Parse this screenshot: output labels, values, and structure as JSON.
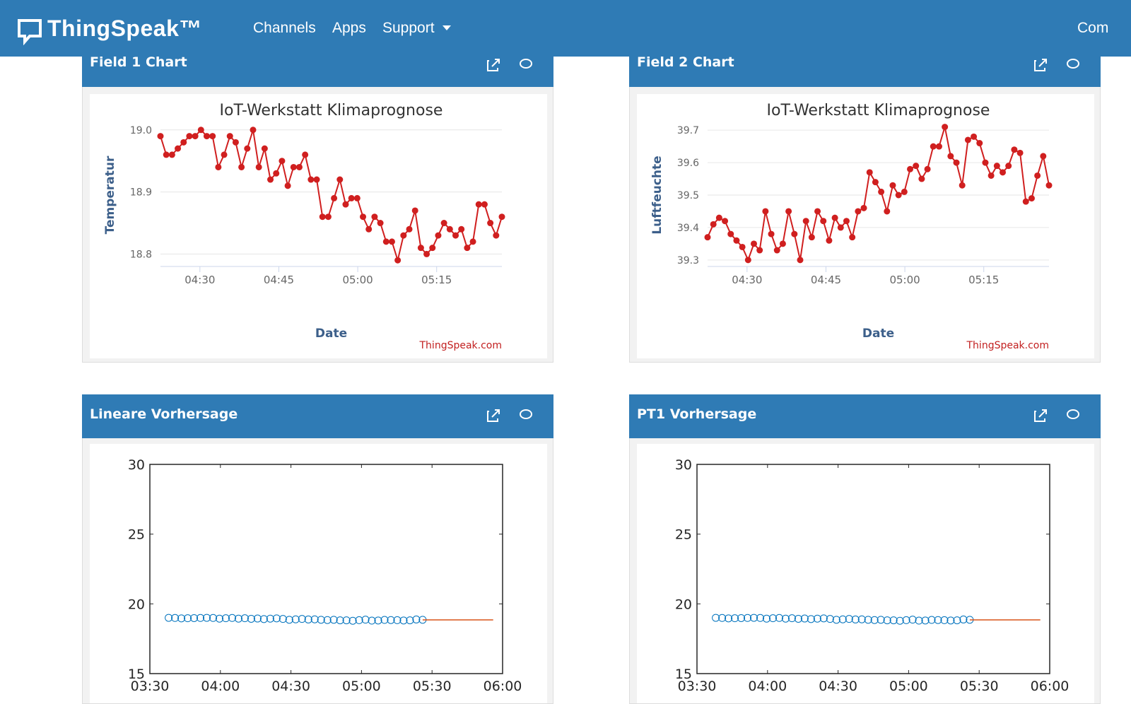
{
  "nav": {
    "brand": "ThingSpeak™",
    "links": [
      "Channels",
      "Apps",
      "Support",
      "Com"
    ]
  },
  "panels": [
    {
      "title": "Field 1 Chart"
    },
    {
      "title": "Field 2 Chart"
    },
    {
      "title": "Lineare Vorhersage"
    },
    {
      "title": "PT1 Vorhersage"
    }
  ],
  "chart_data": [
    {
      "type": "line",
      "title": "IoT-Werkstatt Klimaprognose",
      "x_label": "Date",
      "y_label": "Temperatur",
      "credit": "ThingSpeak.com",
      "color": "#d01f1f",
      "grid": true,
      "x": [
        262.5,
        263.6,
        264.7,
        265.8,
        266.9,
        268.0,
        269.1,
        270.2,
        271.3,
        272.4,
        273.5,
        274.6,
        275.7,
        276.8,
        277.9,
        279.0,
        280.1,
        281.2,
        282.3,
        283.4,
        284.5,
        285.6,
        286.7,
        287.8,
        288.9,
        290.0,
        291.1,
        292.2,
        293.3,
        294.4,
        295.5,
        296.6,
        297.7,
        298.8,
        299.9,
        301.0,
        302.1,
        303.2,
        304.3,
        305.4,
        306.5,
        307.6,
        308.7,
        309.8,
        310.9,
        312.0,
        313.1,
        314.2,
        315.3,
        316.4,
        317.5,
        318.6,
        319.7,
        320.8,
        321.9,
        323.0,
        324.1,
        325.2,
        326.3,
        327.4
      ],
      "values": [
        18.99,
        18.96,
        18.96,
        18.97,
        18.98,
        18.99,
        18.99,
        19.0,
        18.99,
        18.99,
        18.94,
        18.96,
        18.99,
        18.98,
        18.94,
        18.97,
        19.0,
        18.94,
        18.97,
        18.92,
        18.93,
        18.95,
        18.91,
        18.94,
        18.94,
        18.96,
        18.92,
        18.92,
        18.86,
        18.86,
        18.89,
        18.92,
        18.88,
        18.89,
        18.89,
        18.86,
        18.84,
        18.86,
        18.85,
        18.82,
        18.82,
        18.79,
        18.83,
        18.84,
        18.87,
        18.81,
        18.8,
        18.81,
        18.83,
        18.85,
        18.84,
        18.83,
        18.84,
        18.81,
        18.82,
        18.88,
        18.88,
        18.85,
        18.83,
        18.86
      ],
      "xlim": [
        262.5,
        327.4
      ],
      "xticks": [
        {
          "value": 270,
          "label": "04:30"
        },
        {
          "value": 285,
          "label": "04:45"
        },
        {
          "value": 300,
          "label": "05:00"
        },
        {
          "value": 315,
          "label": "05:15"
        }
      ],
      "ylim": [
        18.78,
        19.01
      ],
      "yticks": [
        18.8,
        18.9,
        {
          "value": 19,
          "label": "19.0"
        }
      ]
    },
    {
      "type": "line",
      "title": "IoT-Werkstatt Klimaprognose",
      "x_label": "Date",
      "y_label": "Luftfeuchte",
      "credit": "ThingSpeak.com",
      "color": "#d01f1f",
      "grid": true,
      "x": [
        262.5,
        263.6,
        264.7,
        265.8,
        266.9,
        268.0,
        269.1,
        270.2,
        271.3,
        272.4,
        273.5,
        274.6,
        275.7,
        276.8,
        277.9,
        279.0,
        280.1,
        281.2,
        282.3,
        283.4,
        284.5,
        285.6,
        286.7,
        287.8,
        288.9,
        290.0,
        291.1,
        292.2,
        293.3,
        294.4,
        295.5,
        296.6,
        297.7,
        298.8,
        299.9,
        301.0,
        302.1,
        303.2,
        304.3,
        305.4,
        306.5,
        307.6,
        308.7,
        309.8,
        310.9,
        312.0,
        313.1,
        314.2,
        315.3,
        316.4,
        317.5,
        318.6,
        319.7,
        320.8,
        321.9,
        323.0,
        324.1,
        325.2,
        326.3,
        327.4
      ],
      "values": [
        39.37,
        39.41,
        39.43,
        39.42,
        39.38,
        39.36,
        39.34,
        39.3,
        39.35,
        39.33,
        39.45,
        39.38,
        39.33,
        39.35,
        39.45,
        39.38,
        39.3,
        39.42,
        39.37,
        39.45,
        39.42,
        39.36,
        39.43,
        39.4,
        39.42,
        39.37,
        39.45,
        39.46,
        39.57,
        39.54,
        39.51,
        39.45,
        39.53,
        39.5,
        39.51,
        39.58,
        39.59,
        39.55,
        39.58,
        39.65,
        39.65,
        39.71,
        39.62,
        39.6,
        39.53,
        39.67,
        39.68,
        39.66,
        39.6,
        39.56,
        39.59,
        39.57,
        39.59,
        39.64,
        39.63,
        39.48,
        39.49,
        39.56,
        39.62,
        39.53
      ],
      "xlim": [
        262.5,
        327.4
      ],
      "xticks": [
        {
          "value": 270,
          "label": "04:30"
        },
        {
          "value": 285,
          "label": "04:45"
        },
        {
          "value": 300,
          "label": "05:00"
        },
        {
          "value": 315,
          "label": "05:15"
        }
      ],
      "ylim": [
        39.28,
        39.72
      ],
      "yticks": [
        39.3,
        39.4,
        39.5,
        39.6,
        39.7
      ]
    },
    {
      "type": "scatter",
      "xlim": [
        210,
        360
      ],
      "xticks": [
        {
          "value": 210,
          "label": "03:30"
        },
        {
          "value": 240,
          "label": "04:00"
        },
        {
          "value": 270,
          "label": "04:30"
        },
        {
          "value": 300,
          "label": "05:00"
        },
        {
          "value": 330,
          "label": "05:30"
        },
        {
          "value": 360,
          "label": "06:00"
        }
      ],
      "ylim": [
        15,
        30
      ],
      "yticks": [
        15,
        20,
        25,
        30
      ],
      "series": [
        {
          "mark": "circle",
          "color": "#0072bd",
          "x": [
            218,
            220.7,
            223.4,
            226.1,
            228.8,
            231.5,
            234.2,
            236.9,
            239.6,
            242.3,
            245,
            247.7,
            250.4,
            253.1,
            255.8,
            258.5,
            261.2,
            263.9,
            266.6,
            269.3,
            272,
            274.7,
            277.4,
            280.1,
            282.8,
            285.5,
            288.2,
            290.9,
            293.6,
            296.3,
            299,
            301.7,
            304.4,
            307.1,
            309.8,
            312.5,
            315.2,
            317.9,
            320.6,
            323.3,
            326
          ],
          "values": [
            19.0,
            18.99,
            18.96,
            18.97,
            18.98,
            18.99,
            19.0,
            18.99,
            18.94,
            18.97,
            18.99,
            18.94,
            18.97,
            18.93,
            18.95,
            18.91,
            18.94,
            18.96,
            18.92,
            18.86,
            18.89,
            18.92,
            18.88,
            18.89,
            18.86,
            18.84,
            18.86,
            18.82,
            18.82,
            18.79,
            18.83,
            18.87,
            18.8,
            18.81,
            18.85,
            18.84,
            18.83,
            18.81,
            18.82,
            18.88,
            18.86
          ]
        },
        {
          "mark": "line",
          "color": "#d95319",
          "x": [
            326,
            356
          ],
          "values": [
            18.85,
            18.85
          ]
        }
      ]
    },
    {
      "type": "scatter",
      "xlim": [
        210,
        360
      ],
      "xticks": [
        {
          "value": 210,
          "label": "03:30"
        },
        {
          "value": 240,
          "label": "04:00"
        },
        {
          "value": 270,
          "label": "04:30"
        },
        {
          "value": 300,
          "label": "05:00"
        },
        {
          "value": 330,
          "label": "05:30"
        },
        {
          "value": 360,
          "label": "06:00"
        }
      ],
      "ylim": [
        15,
        30
      ],
      "yticks": [
        15,
        20,
        25,
        30
      ],
      "series": [
        {
          "mark": "circle",
          "color": "#0072bd",
          "x": [
            218,
            220.7,
            223.4,
            226.1,
            228.8,
            231.5,
            234.2,
            236.9,
            239.6,
            242.3,
            245,
            247.7,
            250.4,
            253.1,
            255.8,
            258.5,
            261.2,
            263.9,
            266.6,
            269.3,
            272,
            274.7,
            277.4,
            280.1,
            282.8,
            285.5,
            288.2,
            290.9,
            293.6,
            296.3,
            299,
            301.7,
            304.4,
            307.1,
            309.8,
            312.5,
            315.2,
            317.9,
            320.6,
            323.3,
            326
          ],
          "values": [
            19.0,
            18.99,
            18.96,
            18.97,
            18.98,
            18.99,
            19.0,
            18.99,
            18.94,
            18.97,
            18.99,
            18.94,
            18.97,
            18.93,
            18.95,
            18.91,
            18.94,
            18.96,
            18.92,
            18.86,
            18.89,
            18.92,
            18.88,
            18.89,
            18.86,
            18.84,
            18.86,
            18.82,
            18.82,
            18.79,
            18.83,
            18.87,
            18.8,
            18.81,
            18.85,
            18.84,
            18.83,
            18.81,
            18.82,
            18.88,
            18.86
          ]
        },
        {
          "mark": "line",
          "color": "#d95319",
          "x": [
            326,
            356
          ],
          "values": [
            18.85,
            18.85
          ]
        }
      ]
    }
  ]
}
